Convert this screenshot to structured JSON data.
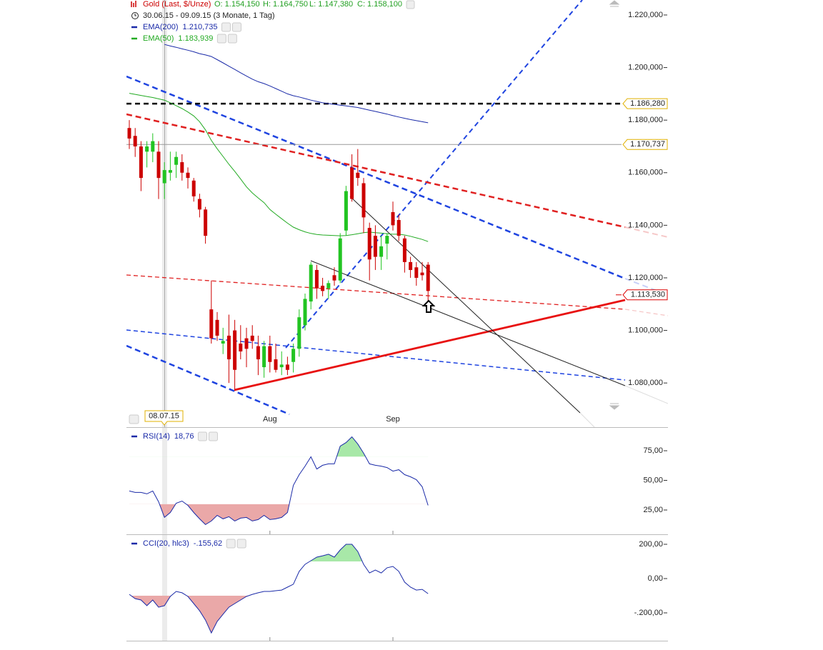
{
  "chart_data": [
    {
      "type": "candlestick",
      "title": "Gold (Last, $/Unze)",
      "header_values": [
        "O: 1.154,150",
        "H: 1.164,750",
        "L: 1.147,380",
        "C: 1.158,100"
      ],
      "subtitle": "30.06.15 - 09.09.15 (3 Monate, 1 Tag)",
      "crosshair_label": "08.07.15",
      "categories": [
        null,
        null,
        null,
        null,
        null,
        null,
        null,
        null,
        null,
        null,
        null,
        null,
        null,
        null,
        null,
        null,
        null,
        null,
        null,
        null,
        null,
        null,
        null,
        null,
        "Aug",
        null,
        null,
        null,
        null,
        null,
        null,
        null,
        null,
        null,
        null,
        null,
        null,
        null,
        null,
        null,
        null,
        null,
        null,
        null,
        null,
        "Sep",
        null,
        null,
        null,
        null,
        null,
        null
      ],
      "open": [
        1177,
        1174,
        1170,
        1168,
        1168,
        1168,
        1156,
        1160,
        1163,
        1164,
        1160,
        1157,
        1150,
        1146,
        1108,
        1104,
        1095,
        1098,
        1100,
        1095,
        1097,
        1098,
        1094,
        1086,
        1094,
        1089,
        1086,
        1087,
        1088,
        1093,
        1102,
        1111,
        1123,
        1117,
        1116,
        1121,
        1119,
        1138,
        1162,
        1160,
        1156,
        1139,
        1136,
        1128,
        1133,
        1145,
        1142,
        1135,
        1126,
        1124,
        1122,
        1125
      ],
      "high": [
        1180,
        1177,
        1172,
        1172,
        1175,
        1172,
        1164,
        1168,
        1168,
        1167,
        1162,
        1158,
        1152,
        1147,
        1119,
        1107,
        1101,
        1106,
        1104,
        1102,
        1101,
        1102,
        1098,
        1096,
        1098,
        1095,
        1092,
        1090,
        1095,
        1108,
        1114,
        1126,
        1125,
        1120,
        1119,
        1124,
        1137,
        1155,
        1167,
        1169,
        1158,
        1141,
        1140,
        1136,
        1137,
        1149,
        1144,
        1136,
        1128,
        1126,
        1126,
        1126
      ],
      "low": [
        1169,
        1166,
        1153,
        1162,
        1164,
        1150,
        1150,
        1157,
        1158,
        1157,
        1154,
        1149,
        1143,
        1133,
        1095,
        1096,
        1091,
        1080,
        1077,
        1089,
        1086,
        1093,
        1083,
        1082,
        1084,
        1084,
        1083,
        1083,
        1084,
        1090,
        1100,
        1108,
        1112,
        1113,
        1112,
        1117,
        1118,
        1136,
        1149,
        1155,
        1137,
        1119,
        1123,
        1123,
        1127,
        1138,
        1134,
        1122,
        1120,
        1117,
        1119,
        1111
      ],
      "close": [
        1173,
        1170,
        1158,
        1170,
        1172,
        1158,
        1161,
        1161,
        1166,
        1160,
        1158,
        1151,
        1146,
        1136,
        1097,
        1098,
        1096,
        1089,
        1085,
        1092,
        1093,
        1096,
        1089,
        1094,
        1088,
        1085,
        1087,
        1085,
        1093,
        1105,
        1112,
        1125,
        1116,
        1115,
        1118,
        1119,
        1135,
        1153,
        1150,
        1158,
        1143,
        1127,
        1128,
        1132,
        1136,
        1140,
        1136,
        1126,
        1123,
        1120,
        1121,
        1115
      ],
      "up_color": "#22c422",
      "down_color": "#cc0000",
      "series": [
        {
          "name": "EMA(200)",
          "legend_value": "1.210,735",
          "color": "#1a2aa8",
          "values": [
            null,
            null,
            null,
            null,
            null,
            null,
            1208.8,
            1208.2,
            1207.7,
            1207.1,
            1206.6,
            1206.0,
            1205.3,
            1204.8,
            1204.2,
            1203.0,
            1201.8,
            1200.5,
            1199.3,
            1198.0,
            1196.8,
            1195.6,
            1194.6,
            1193.9,
            1193.0,
            1192.0,
            1191.0,
            1190.0,
            1189.3,
            1188.8,
            1188.2,
            1187.6,
            1187.1,
            1186.6,
            1186.3,
            1186.0,
            1185.7,
            1185.4,
            1185.1,
            1184.8,
            1184.3,
            1183.8,
            1183.3,
            1182.8,
            1182.3,
            1181.7,
            1181.2,
            1180.7,
            1180.2,
            1179.8,
            1179.4,
            1179.0
          ]
        },
        {
          "name": "EMA(50)",
          "legend_value": "1.183,939",
          "color": "#22aa22",
          "values": [
            1190.2,
            1189.8,
            1189.4,
            1189.0,
            1188.6,
            1188.1,
            1187.6,
            1186.6,
            1185.5,
            1184.4,
            1183.1,
            1181.6,
            1179.4,
            1176.3,
            1172.3,
            1169.1,
            1166.2,
            1163.2,
            1160.5,
            1157.6,
            1154.6,
            1152.3,
            1150.4,
            1148.6,
            1146.0,
            1144.2,
            1142.5,
            1140.8,
            1139.3,
            1138.3,
            1137.5,
            1136.9,
            1136.5,
            1136.3,
            1136.2,
            1136.1,
            1136.0,
            1136.1,
            1136.4,
            1136.8,
            1137.2,
            1137.4,
            1137.2,
            1137.0,
            1136.8,
            1136.6,
            1136.6,
            1136.3,
            1135.8,
            1135.2,
            1134.6,
            1133.8
          ]
        }
      ],
      "levels": [
        {
          "value": 1186.28,
          "label": "1.186,280",
          "color": "#000000",
          "style": "dashed",
          "border": "#e0b000"
        },
        {
          "value": 1170.737,
          "label": "1.170,737",
          "color": "#999999",
          "style": "solid",
          "border": "#e0b000"
        },
        {
          "value": 1113.53,
          "label": "1.113,530",
          "color": "#dd0000",
          "style": "none",
          "border": "#dd0000"
        }
      ],
      "ylim": [
        1063.2,
        1225.7
      ],
      "yticks": [
        {
          "value": 1080,
          "label": "1.080,000"
        },
        {
          "value": 1100,
          "label": "1.100,000"
        },
        {
          "value": 1120,
          "label": "1.120,000"
        },
        {
          "value": 1140,
          "label": "1.140,000"
        },
        {
          "value": 1160,
          "label": "1.160,000"
        },
        {
          "value": 1180,
          "label": "1.180,000"
        },
        {
          "value": 1200,
          "label": "1.200,000"
        },
        {
          "value": 1220,
          "label": "1.220,000"
        }
      ]
    },
    {
      "type": "line",
      "series": [
        {
          "name": "RSI(14)",
          "legend_value": "18,76",
          "color": "#1a2aa8",
          "values": [
            41.0,
            39.8,
            39.8,
            38.6,
            41.0,
            31.9,
            18.8,
            22.9,
            30.7,
            32.5,
            28.9,
            22.9,
            17.5,
            12.7,
            15.7,
            20.5,
            17.5,
            19.3,
            15.7,
            18.1,
            18.7,
            15.7,
            16.9,
            20.5,
            16.9,
            17.5,
            18.7,
            22.9,
            45.8,
            54.8,
            62.0,
            69.9,
            59.6,
            62.7,
            63.9,
            63.9,
            78.9,
            81.9,
            86.7,
            80.7,
            72.9,
            63.9,
            62.7,
            62.0,
            60.8,
            57.8,
            59.0,
            54.8,
            53.0,
            50.6,
            44.6,
            28.9
          ]
        }
      ],
      "bands": [
        {
          "value": 30,
          "side": "below",
          "color": "#eaa8a8"
        },
        {
          "value": 70,
          "side": "above",
          "color": "#a8e8a8"
        }
      ],
      "ylim": [
        4.5,
        93.7
      ],
      "yticks": [
        {
          "value": 25,
          "label": "25,00"
        },
        {
          "value": 50,
          "label": "50,00"
        },
        {
          "value": 75,
          "label": "75,00"
        }
      ]
    },
    {
      "type": "line",
      "series": [
        {
          "name": "CCI(20, hlc3)",
          "legend_value": "-.155,62",
          "color": "#1a2aa8",
          "values": [
            -92,
            -117,
            -125,
            -158,
            -125,
            -167,
            -158,
            -104,
            -75,
            -83,
            -104,
            -146,
            -188,
            -242,
            -317,
            -250,
            -208,
            -167,
            -146,
            -125,
            -104,
            -92,
            -83,
            -75,
            -75,
            -71,
            -67,
            -50,
            -33,
            42,
            83,
            104,
            125,
            133,
            142,
            125,
            167,
            200,
            200,
            158,
            83,
            33,
            50,
            33,
            63,
            71,
            42,
            -21,
            -50,
            -67,
            -63,
            -88
          ]
        }
      ],
      "bands": [
        {
          "value": -100,
          "side": "below",
          "color": "#eaa8a8"
        },
        {
          "value": 100,
          "side": "above",
          "color": "#a8e8a8"
        }
      ],
      "ylim": [
        -362.5,
        250
      ],
      "yticks": [
        {
          "value": -200,
          "label": "-.200,00"
        },
        {
          "value": 0,
          "label": "0,00"
        },
        {
          "value": 200,
          "label": "200,00"
        }
      ]
    }
  ]
}
